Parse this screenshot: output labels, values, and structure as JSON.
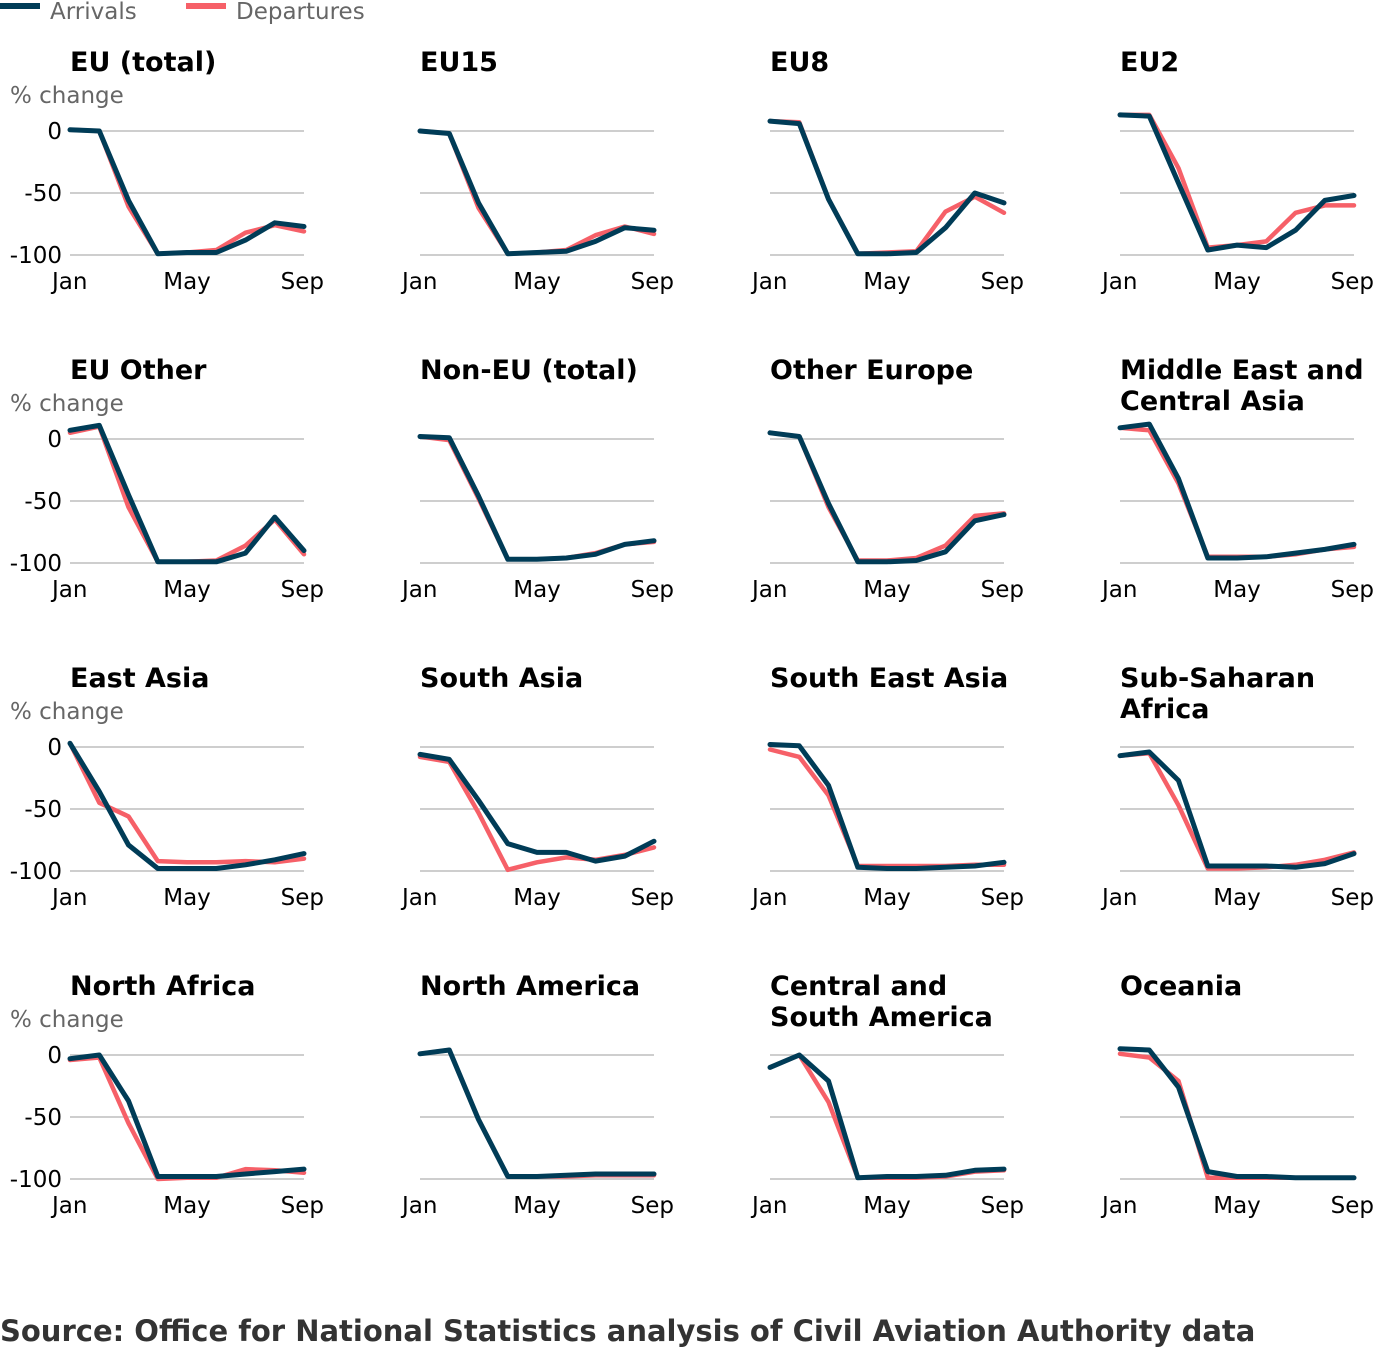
{
  "colors": {
    "arrivals": "#003c57",
    "departures": "#f66068",
    "grid": "#bebebe",
    "axis_text": "#000000",
    "muted_text": "#666666"
  },
  "chart_data": {
    "type": "line",
    "legend": [
      {
        "key": "arrivals",
        "name": "Arrivals"
      },
      {
        "key": "departures",
        "name": "Departures"
      }
    ],
    "legend_position": "top-left",
    "x": [
      "Jan",
      "Feb",
      "Mar",
      "Apr",
      "May",
      "Jun",
      "Jul",
      "Aug",
      "Sep"
    ],
    "x_tick_labels": [
      "Jan",
      "May",
      "Sep"
    ],
    "ylabel": "% change",
    "yticks": [
      0,
      -50,
      -100
    ],
    "ylim": [
      -100,
      0
    ],
    "grid": true,
    "panels": [
      {
        "title": [
          "EU (total)"
        ],
        "arrivals": [
          1,
          0,
          -56,
          -99,
          -98,
          -98,
          -88,
          -74,
          -77
        ],
        "departures": [
          1,
          0,
          -61,
          -99,
          -98,
          -96,
          -82,
          -76,
          -81
        ]
      },
      {
        "title": [
          "EU15"
        ],
        "arrivals": [
          0,
          -2,
          -58,
          -99,
          -98,
          -97,
          -89,
          -78,
          -80
        ],
        "departures": [
          0,
          -2,
          -62,
          -99,
          -98,
          -96,
          -84,
          -77,
          -83
        ]
      },
      {
        "title": [
          "EU8"
        ],
        "arrivals": [
          8,
          6,
          -55,
          -99,
          -99,
          -98,
          -78,
          -50,
          -58
        ],
        "departures": [
          8,
          7,
          -55,
          -99,
          -98,
          -97,
          -65,
          -53,
          -66
        ]
      },
      {
        "title": [
          "EU2"
        ],
        "arrivals": [
          13,
          12,
          -42,
          -96,
          -92,
          -94,
          -80,
          -56,
          -52
        ],
        "departures": [
          13,
          13,
          -30,
          -94,
          -92,
          -89,
          -66,
          -60,
          -60
        ]
      },
      {
        "title": [
          "EU Other"
        ],
        "arrivals": [
          7,
          11,
          -45,
          -99,
          -99,
          -99,
          -92,
          -63,
          -90
        ],
        "departures": [
          5,
          10,
          -55,
          -99,
          -99,
          -98,
          -86,
          -65,
          -93
        ]
      },
      {
        "title": [
          "Non-EU (total)"
        ],
        "arrivals": [
          2,
          1,
          -46,
          -97,
          -97,
          -96,
          -93,
          -85,
          -82
        ],
        "departures": [
          2,
          -1,
          -48,
          -97,
          -97,
          -96,
          -92,
          -85,
          -83
        ]
      },
      {
        "title": [
          "Other Europe"
        ],
        "arrivals": [
          5,
          2,
          -52,
          -99,
          -99,
          -98,
          -91,
          -66,
          -61
        ],
        "departures": [
          5,
          2,
          -55,
          -98,
          -98,
          -96,
          -86,
          -62,
          -60
        ]
      },
      {
        "title": [
          "Middle East and",
          "Central Asia"
        ],
        "arrivals": [
          9,
          12,
          -32,
          -96,
          -96,
          -95,
          -92,
          -89,
          -85
        ],
        "departures": [
          9,
          7,
          -36,
          -95,
          -95,
          -95,
          -93,
          -89,
          -87
        ]
      },
      {
        "title": [
          "East Asia"
        ],
        "arrivals": [
          3,
          -36,
          -79,
          -98,
          -98,
          -98,
          -95,
          -91,
          -86
        ],
        "departures": [
          3,
          -45,
          -56,
          -92,
          -93,
          -93,
          -92,
          -93,
          -90
        ]
      },
      {
        "title": [
          "South Asia"
        ],
        "arrivals": [
          -6,
          -10,
          -43,
          -78,
          -85,
          -85,
          -92,
          -88,
          -76
        ],
        "departures": [
          -8,
          -12,
          -53,
          -99,
          -93,
          -89,
          -91,
          -87,
          -81
        ]
      },
      {
        "title": [
          "South East Asia"
        ],
        "arrivals": [
          2,
          1,
          -31,
          -97,
          -98,
          -98,
          -97,
          -96,
          -93
        ],
        "departures": [
          -2,
          -8,
          -39,
          -96,
          -96,
          -96,
          -96,
          -95,
          -95
        ]
      },
      {
        "title": [
          "Sub-Saharan",
          "Africa"
        ],
        "arrivals": [
          -7,
          -4,
          -27,
          -96,
          -96,
          -96,
          -97,
          -94,
          -86
        ],
        "departures": [
          -7,
          -5,
          -47,
          -98,
          -98,
          -97,
          -95,
          -91,
          -85
        ]
      },
      {
        "title": [
          "North Africa"
        ],
        "arrivals": [
          -3,
          0,
          -37,
          -98,
          -98,
          -98,
          -96,
          -94,
          -92
        ],
        "departures": [
          -4,
          -2,
          -55,
          -100,
          -99,
          -99,
          -92,
          -93,
          -95
        ]
      },
      {
        "title": [
          "North America"
        ],
        "arrivals": [
          1,
          4,
          -52,
          -98,
          -98,
          -97,
          -96,
          -96,
          -96
        ],
        "departures": [
          1,
          4,
          -52,
          -98,
          -98,
          -98,
          -97,
          -97,
          -97
        ]
      },
      {
        "title": [
          "Central and",
          "South America"
        ],
        "arrivals": [
          -10,
          0,
          -21,
          -99,
          -98,
          -98,
          -97,
          -93,
          -92
        ],
        "departures": [
          -10,
          0,
          -38,
          -99,
          -99,
          -99,
          -98,
          -94,
          -93
        ]
      },
      {
        "title": [
          "Oceania"
        ],
        "arrivals": [
          5,
          4,
          -26,
          -94,
          -98,
          -98,
          -99,
          -99,
          -99
        ],
        "departures": [
          1,
          -2,
          -21,
          -99,
          -99,
          -99,
          -99,
          -99,
          -99
        ]
      }
    ]
  },
  "source": "Source: Office for National Statistics analysis of Civil Aviation Authority data"
}
